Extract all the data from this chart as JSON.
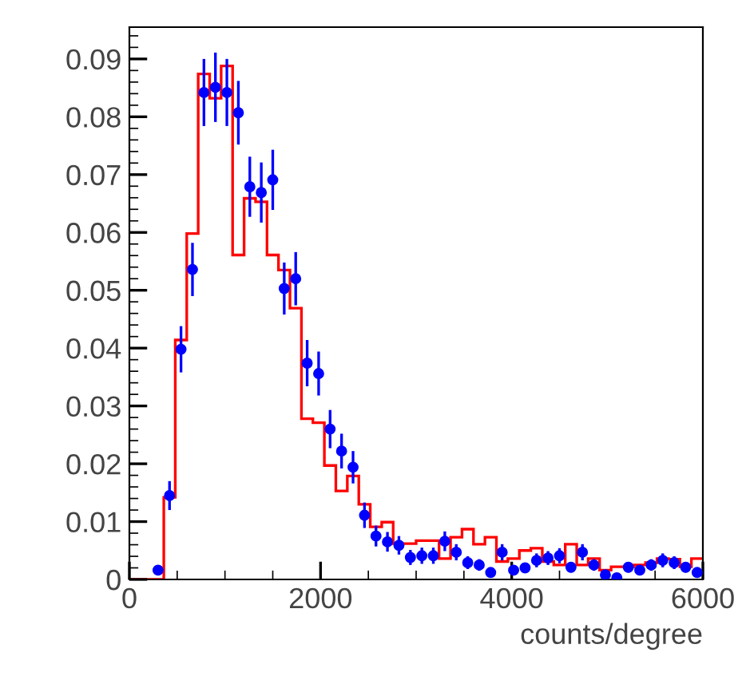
{
  "chart_data": {
    "type": "histogram",
    "xlabel": "counts/degree",
    "xlim": [
      0,
      6000
    ],
    "xticks": [
      0,
      2000,
      4000,
      6000
    ],
    "ylim": [
      0,
      0.0955
    ],
    "yticks": [
      0,
      0.01,
      0.02,
      0.03,
      0.04,
      0.05,
      0.06,
      0.07,
      0.08,
      0.09
    ],
    "grid": false,
    "bins": [
      0,
      120,
      240,
      360,
      480,
      600,
      720,
      840,
      960,
      1080,
      1200,
      1320,
      1440,
      1560,
      1680,
      1800,
      1920,
      2040,
      2160,
      2280,
      2400,
      2520,
      2640,
      2760,
      2880,
      3000,
      3120,
      3240,
      3360,
      3480,
      3600,
      3720,
      3840,
      3960,
      4080,
      4200,
      4320,
      4440,
      4560,
      4680,
      4800,
      4920,
      5040,
      5160,
      5280,
      5400,
      5520,
      5640,
      5760,
      5880,
      6000
    ],
    "series": [
      {
        "color": "#ff0000",
        "values": [
          0,
          0,
          0,
          0.0142,
          0.0414,
          0.0598,
          0.0874,
          0.0832,
          0.0888,
          0.0561,
          0.0659,
          0.0653,
          0.0561,
          0.0535,
          0.0469,
          0.0278,
          0.0271,
          0.0197,
          0.0153,
          0.0179,
          0.013,
          0.0091,
          0.0099,
          0.0062,
          0.0062,
          0.0067,
          0.0067,
          0.0036,
          0.0073,
          0.0087,
          0.0061,
          0.0073,
          0.0031,
          0.0036,
          0.005,
          0.0054,
          0.0031,
          0.0025,
          0.0061,
          0.0025,
          0.0036,
          0.0016,
          0.0022,
          0.0022,
          0.0025,
          0.0029,
          0.0036,
          0.0035,
          0.0022,
          0.0036
        ]
      },
      {
        "type": "scatter",
        "color": "#0000ff",
        "marker": "circle",
        "x": [
          300,
          420,
          540,
          660,
          780,
          900,
          1020,
          1140,
          1260,
          1380,
          1500,
          1620,
          1740,
          1860,
          1980,
          2100,
          2220,
          2340,
          2460,
          2580,
          2700,
          2820,
          2940,
          3060,
          3180,
          3300,
          3420,
          3540,
          3660,
          3780,
          3900,
          4020,
          4140,
          4260,
          4380,
          4500,
          4620,
          4740,
          4860,
          4980,
          5100,
          5220,
          5340,
          5460,
          5580,
          5700,
          5820,
          5940
        ],
        "values": [
          0.0016,
          0.0145,
          0.0398,
          0.0536,
          0.0842,
          0.0851,
          0.0842,
          0.0807,
          0.0679,
          0.0669,
          0.0691,
          0.0503,
          0.052,
          0.0374,
          0.0356,
          0.026,
          0.0222,
          0.0194,
          0.0111,
          0.0075,
          0.0065,
          0.0059,
          0.0038,
          0.0041,
          0.0041,
          0.0066,
          0.0047,
          0.0029,
          0.0025,
          0.0012,
          0.0047,
          0.0016,
          0.002,
          0.0033,
          0.0037,
          0.0041,
          0.0021,
          0.0047,
          0.0025,
          0.0008,
          0.0003,
          0.0021,
          0.0016,
          0.0025,
          0.0033,
          0.0029,
          0.0021,
          0.0012
        ],
        "errors": [
          0.0008,
          0.0025,
          0.004,
          0.0046,
          0.0058,
          0.006,
          0.0058,
          0.0055,
          0.0052,
          0.0052,
          0.0052,
          0.0045,
          0.0046,
          0.004,
          0.0038,
          0.0033,
          0.003,
          0.0028,
          0.0022,
          0.0018,
          0.0017,
          0.0016,
          0.0013,
          0.0014,
          0.0014,
          0.0017,
          0.0014,
          0.0011,
          0.001,
          0.0008,
          0.0014,
          0.0008,
          0.0009,
          0.0012,
          0.0012,
          0.0013,
          0.0009,
          0.0014,
          0.001,
          0.0006,
          0.0004,
          0.0009,
          0.0008,
          0.001,
          0.0012,
          0.0011,
          0.0009,
          0.0008
        ]
      }
    ]
  }
}
